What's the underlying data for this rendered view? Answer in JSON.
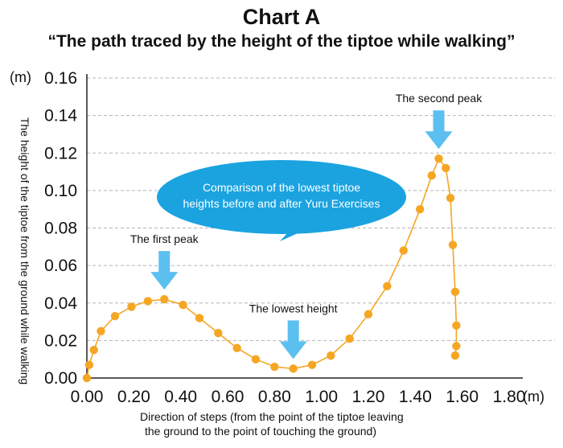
{
  "chart_data": {
    "type": "line",
    "title": "Chart A",
    "subtitle": "“The path traced by the height of the tiptoe while walking”",
    "ylabel": "The height of the tiptoe from the ground while walking",
    "xlabel_line1": "Direction of steps (from the point of the tiptoe leaving",
    "xlabel_line2": "the ground to the point of touching the ground)",
    "y_unit": "(m)",
    "x_unit": "(m)",
    "xlim": [
      0,
      1.8
    ],
    "ylim": [
      0,
      0.16
    ],
    "x_ticks": [
      "0.00",
      "0.20",
      "0.40",
      "0.60",
      "0.80",
      "1.00",
      "1.20",
      "1.40",
      "1.60",
      "1.80"
    ],
    "y_ticks": [
      "0.00",
      "0.02",
      "0.04",
      "0.06",
      "0.08",
      "0.10",
      "0.12",
      "0.14",
      "0.16"
    ],
    "grid": "horizontal dashed",
    "series_color": "#F5A623",
    "arrow_color": "#5BC0F0",
    "bubble_color": "#1BA3E0",
    "points": [
      {
        "x": 0.0,
        "y": 0.0
      },
      {
        "x": 0.01,
        "y": 0.007
      },
      {
        "x": 0.03,
        "y": 0.015
      },
      {
        "x": 0.06,
        "y": 0.025
      },
      {
        "x": 0.12,
        "y": 0.033
      },
      {
        "x": 0.19,
        "y": 0.038
      },
      {
        "x": 0.26,
        "y": 0.041
      },
      {
        "x": 0.33,
        "y": 0.042
      },
      {
        "x": 0.41,
        "y": 0.039
      },
      {
        "x": 0.48,
        "y": 0.032
      },
      {
        "x": 0.56,
        "y": 0.024
      },
      {
        "x": 0.64,
        "y": 0.016
      },
      {
        "x": 0.72,
        "y": 0.01
      },
      {
        "x": 0.8,
        "y": 0.006
      },
      {
        "x": 0.88,
        "y": 0.005
      },
      {
        "x": 0.96,
        "y": 0.007
      },
      {
        "x": 1.04,
        "y": 0.012
      },
      {
        "x": 1.12,
        "y": 0.021
      },
      {
        "x": 1.2,
        "y": 0.034
      },
      {
        "x": 1.28,
        "y": 0.049
      },
      {
        "x": 1.35,
        "y": 0.068
      },
      {
        "x": 1.42,
        "y": 0.09
      },
      {
        "x": 1.47,
        "y": 0.108
      },
      {
        "x": 1.5,
        "y": 0.117
      },
      {
        "x": 1.53,
        "y": 0.112
      },
      {
        "x": 1.55,
        "y": 0.096
      },
      {
        "x": 1.56,
        "y": 0.071
      },
      {
        "x": 1.57,
        "y": 0.046
      },
      {
        "x": 1.575,
        "y": 0.028
      },
      {
        "x": 1.575,
        "y": 0.017
      },
      {
        "x": 1.57,
        "y": 0.012
      }
    ],
    "annotations": [
      {
        "label": "The first peak",
        "x": 0.33,
        "y": 0.042
      },
      {
        "label": "The lowest height",
        "x": 0.88,
        "y": 0.005
      },
      {
        "label": "The second peak",
        "x": 1.5,
        "y": 0.117
      }
    ],
    "callout": {
      "line1": "Comparison of the lowest tiptoe",
      "line2": "heights before and after Yuru Exercises"
    }
  }
}
